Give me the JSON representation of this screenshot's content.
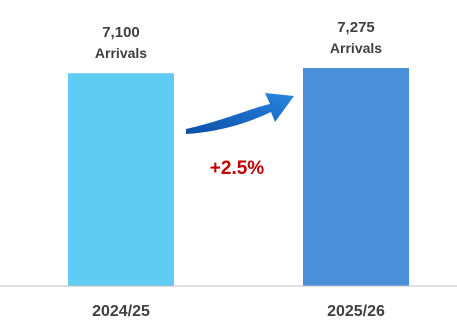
{
  "chart_data": {
    "type": "bar",
    "categories": [
      "2024/25",
      "2025/26"
    ],
    "values": [
      7100,
      7275
    ],
    "value_labels": [
      "7,100",
      "7,275"
    ],
    "unit_label": "Arrivals",
    "colors": [
      "#5ECCF3",
      "#4A90D9"
    ],
    "change_label": "+2.5%",
    "change_color": "#C00000",
    "axis_color": "#BFBFBF",
    "arrow_color": "#1F6FC9",
    "grid": false,
    "legend": "none"
  }
}
